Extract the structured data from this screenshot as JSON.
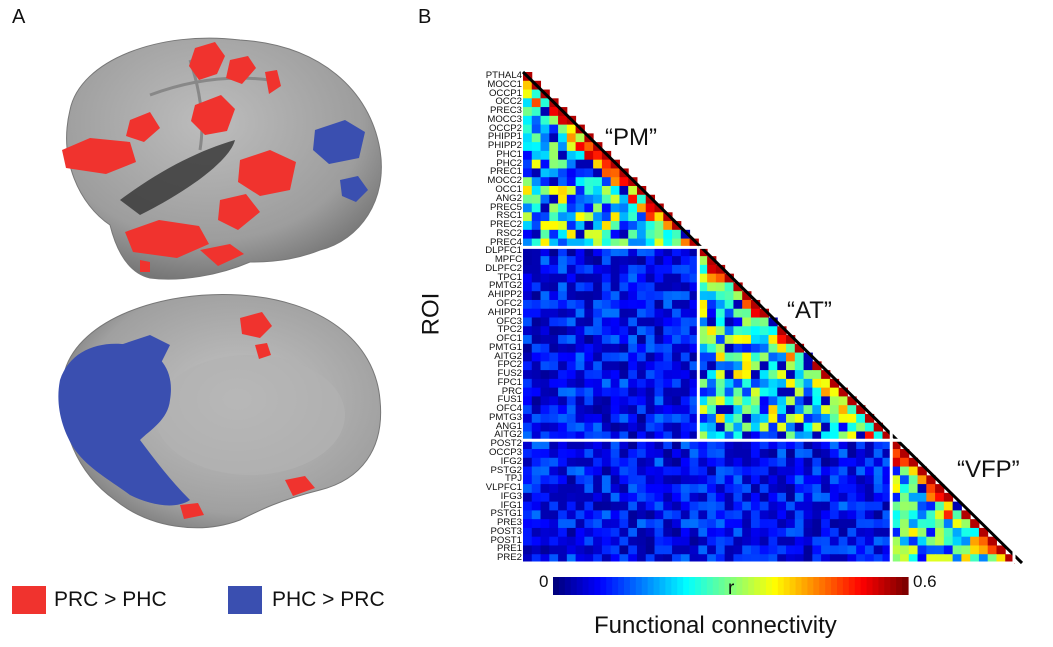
{
  "panels": {
    "a": "A",
    "b": "B"
  },
  "legend": {
    "red_label": "PRC > PHC",
    "blue_label": "PHC > PRC",
    "red_color": "#f0332e",
    "blue_color": "#3a4fb0"
  },
  "brain": {
    "surface_color": "#a3a3a3",
    "red_color": "#f0332e",
    "blue_color": "#3a4fb0"
  },
  "matrix": {
    "ylabel": "ROI",
    "rois": [
      "PTHAL4",
      "MOCC1",
      "OCCP1",
      "OCC2",
      "PREC3",
      "MOCC3",
      "OCCP2",
      "PHIPP1",
      "PHIPP2",
      "PHC1",
      "PHC2",
      "PREC1",
      "MOCC2",
      "OCC1",
      "ANG2",
      "PREC5",
      "RSC1",
      "PREC2",
      "RSC2",
      "PREC4",
      "DLPFC1",
      "MPFC",
      "DLPFC2",
      "TPC1",
      "PMTG2",
      "AHIPP2",
      "OFC2",
      "AHIPP1",
      "OFC3",
      "TPC2",
      "OFC1",
      "PMTG1",
      "AITG2",
      "FPC2",
      "FUS2",
      "FPC1",
      "PRC",
      "FUS1",
      "OFC4",
      "PMTG3",
      "ANG1",
      "AITG2",
      "POST2",
      "OCCP3",
      "IFG2",
      "PSTG2",
      "TPJ",
      "VLPFC1",
      "IFG3",
      "IFG1",
      "PSTG1",
      "PRE3",
      "POST3",
      "POST1",
      "PRE1",
      "PRE2"
    ],
    "clusters": [
      {
        "label": "“PM”",
        "start": 0,
        "end": 19
      },
      {
        "label": "“AT”",
        "start": 20,
        "end": 41
      },
      {
        "label": "“VFP”",
        "start": 42,
        "end": 55
      }
    ],
    "colorbar": {
      "min": "0",
      "max": "0.6",
      "variable": "r",
      "title": "Functional connectivity"
    },
    "colormap": [
      "#00007f",
      "#0000ff",
      "#007fff",
      "#00ffff",
      "#7fff7f",
      "#ffff00",
      "#ff7f00",
      "#ff0000",
      "#7f0000"
    ]
  }
}
